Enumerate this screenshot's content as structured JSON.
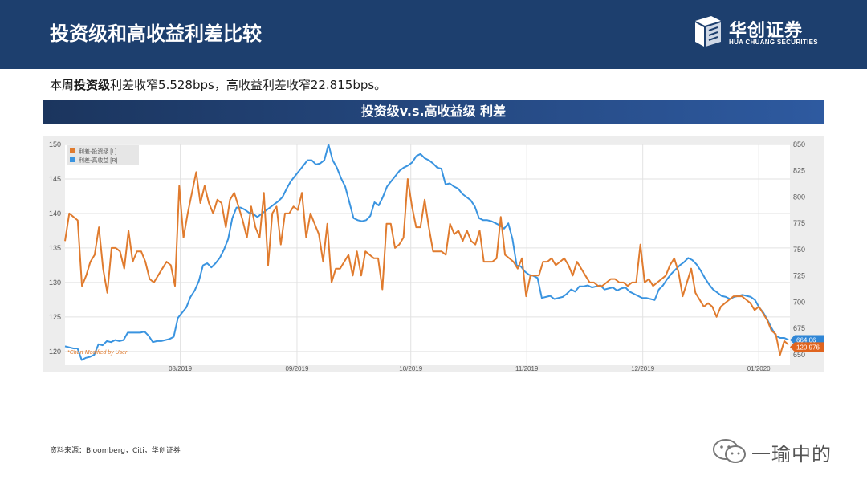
{
  "header": {
    "title": "投资级和高收益利差比较"
  },
  "logo": {
    "cn": "华创证券",
    "en": "HUA CHUANG SECURITIES"
  },
  "summary": {
    "prefix": "本周",
    "bold": "投资级",
    "rest": "利差收窄5.528bps，高收益利差收窄22.815bps。"
  },
  "banner": {
    "title": "投资级v.s.高收益级 利差"
  },
  "source": "资料来源：Bloomberg，Citi，华创证券",
  "watermark": "一瑜中的",
  "colors": {
    "header": "#1d3f6e",
    "ig": "#e07b2e",
    "hy": "#3a94e0",
    "ig_badge": "#e0641e",
    "hy_badge": "#2f86d6"
  },
  "chart_data": {
    "type": "line",
    "x_ticks": [
      "08/2019",
      "09/2019",
      "10/2019",
      "11/2019",
      "12/2019",
      "01/2020"
    ],
    "left_axis": {
      "min": 118,
      "max": 150,
      "ticks": [
        120,
        125,
        130,
        135,
        140,
        145,
        150
      ]
    },
    "right_axis": {
      "min": 640,
      "max": 850,
      "ticks": [
        650,
        675,
        700,
        725,
        750,
        775,
        800,
        825,
        850
      ]
    },
    "annotation": "*Chart Modified by User",
    "series": [
      {
        "name": "利差-投资级 [L]",
        "axis": "left",
        "last_label": "120.976",
        "values": [
          136,
          140,
          139.5,
          139,
          129.5,
          131,
          133,
          134,
          138,
          132,
          128.5,
          135,
          135,
          134.5,
          132,
          137.5,
          133,
          134.5,
          134.5,
          133,
          130.5,
          130,
          131,
          132,
          133,
          132.5,
          129.5,
          144,
          136.5,
          140,
          143,
          146,
          141.5,
          144,
          141.5,
          140,
          142,
          141.5,
          138,
          142,
          143,
          141,
          139,
          136.5,
          141,
          138,
          136.5,
          143,
          132.5,
          140,
          141,
          135.5,
          140,
          140,
          141,
          140.5,
          143,
          136.5,
          140,
          138.5,
          137,
          133,
          138.5,
          130,
          132,
          132,
          133,
          134,
          131,
          134.5,
          131,
          134.5,
          134,
          133.5,
          133.5,
          129,
          138.5,
          138.5,
          135,
          135.5,
          136.5,
          145,
          141,
          138,
          138,
          142,
          138,
          134.5,
          134.5,
          134.5,
          134,
          138.5,
          137,
          137.5,
          136,
          137.5,
          136,
          135.5,
          137.5,
          133,
          133,
          133,
          133.5,
          139.5,
          134,
          133.5,
          133,
          132,
          133.5,
          128,
          131,
          131,
          131,
          133,
          133,
          133.5,
          132.5,
          133,
          133.5,
          132.5,
          131,
          133,
          132,
          131,
          130,
          130,
          129.5,
          129.5,
          130,
          130.5,
          130.5,
          130,
          130,
          129.5,
          130,
          130,
          135.5,
          130,
          130.5,
          129.5,
          130,
          130.5,
          131,
          132.5,
          133.5,
          131.5,
          128,
          130,
          132,
          128.5,
          127.5,
          126.5,
          127,
          126.5,
          125,
          126.5,
          127,
          127.5,
          128,
          128,
          128,
          127.5,
          127,
          126,
          126.5,
          125.5,
          124.5,
          123,
          122.5,
          119.5,
          121.5,
          120.976
        ]
      },
      {
        "name": "利差-高收益 [R]",
        "axis": "right",
        "last_label": "664.06",
        "values": [
          658,
          657,
          656,
          656,
          645,
          647,
          648,
          650,
          660,
          659,
          663,
          662,
          664,
          663,
          664,
          671,
          671,
          671,
          671,
          672,
          668,
          662,
          663,
          663,
          664,
          665,
          667,
          685,
          690,
          695,
          705,
          711,
          720,
          735,
          737,
          733,
          737,
          742,
          750,
          760,
          780,
          790,
          790,
          788,
          785,
          784,
          781,
          784,
          787,
          790,
          793,
          796,
          800,
          808,
          815,
          820,
          825,
          830,
          835,
          835,
          831,
          832,
          835,
          850,
          835,
          828,
          818,
          810,
          795,
          780,
          778,
          777,
          778,
          782,
          795,
          792,
          800,
          810,
          815,
          820,
          825,
          828,
          830,
          833,
          839,
          841,
          837,
          835,
          832,
          828,
          827,
          812,
          813,
          810,
          808,
          803,
          800,
          797,
          791,
          780,
          778,
          778,
          777,
          775,
          773,
          770,
          775,
          760,
          735,
          734,
          729,
          726,
          725,
          723,
          704,
          705,
          706,
          703,
          704,
          705,
          708,
          712,
          710,
          715,
          715,
          716,
          714,
          715,
          716,
          712,
          713,
          714,
          711,
          713,
          714,
          710,
          708,
          706,
          704,
          704,
          703,
          702,
          712,
          716,
          722,
          727,
          731,
          735,
          738,
          742,
          740,
          736,
          730,
          723,
          717,
          712,
          709,
          706,
          705,
          703,
          705,
          706,
          707,
          706,
          705,
          702,
          695,
          690,
          683,
          675,
          668,
          666,
          666,
          664.06
        ]
      }
    ]
  }
}
